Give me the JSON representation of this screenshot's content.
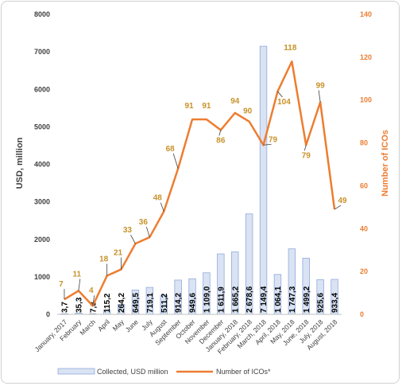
{
  "chart_data": {
    "type": "bar+line",
    "categories": [
      "January, 2017",
      "February",
      "March",
      "April",
      "May",
      "June",
      "July",
      "August",
      "September",
      "October",
      "November",
      "December",
      "January, 2018",
      "February, 2018",
      "March, 2018",
      "April, 2018",
      "May, 2018",
      "June, 2018",
      "July, 2018",
      "August, 2018"
    ],
    "series": [
      {
        "name": "Collected, USD million",
        "type": "bar",
        "axis": "left",
        "values": [
          3.7,
          35.3,
          7.3,
          115.2,
          264.2,
          649.5,
          719.1,
          511.2,
          914.2,
          949.6,
          1109.0,
          1611.9,
          1665.2,
          2678.6,
          7149.4,
          1064.1,
          1747.3,
          1499.2,
          925.6,
          933.4
        ],
        "labels": [
          "3,7",
          "35,3",
          "7,3",
          "115,2",
          "264,2",
          "649,5",
          "719,1",
          "511,2",
          "914,2",
          "949,6",
          "1 109,0",
          "1 611,9",
          "1 665,2",
          "2 678,6",
          "7 149,4",
          "1 064,1",
          "1 747,3",
          "1 499,2",
          "925,6",
          "933,4"
        ],
        "color": "#dae3f3",
        "border": "#8faadc"
      },
      {
        "name": "Number of ICOs*",
        "type": "line",
        "axis": "right",
        "values": [
          7,
          11,
          4,
          18,
          21,
          33,
          36,
          48,
          68,
          91,
          91,
          86,
          94,
          90,
          79,
          104,
          118,
          79,
          99,
          49
        ],
        "color": "#ed7d31",
        "label_color": "#c8922a"
      }
    ],
    "ylabel": "USD, million",
    "y2label": "Number of ICOs",
    "ylim": [
      0,
      8000
    ],
    "y2lim": [
      0,
      140
    ],
    "yticks": [
      0,
      1000,
      2000,
      3000,
      4000,
      5000,
      6000,
      7000,
      8000
    ],
    "y2ticks": [
      0,
      20,
      40,
      60,
      80,
      100,
      120,
      140
    ],
    "legend_position": "bottom",
    "grid": false
  }
}
